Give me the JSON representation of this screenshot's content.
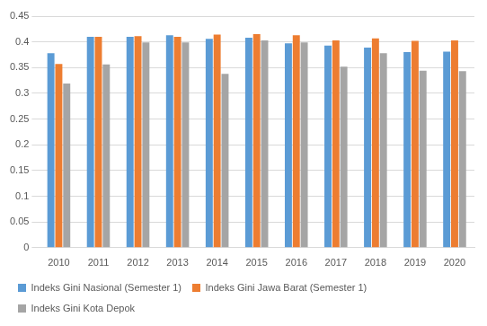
{
  "chart_data": {
    "type": "bar",
    "categories": [
      "2010",
      "2011",
      "2012",
      "2013",
      "2014",
      "2015",
      "2016",
      "2017",
      "2018",
      "2019",
      "2020"
    ],
    "series": [
      {
        "name": "Indeks Gini Nasional (Semester 1)",
        "color": "#5b9bd5",
        "values": [
          0.378,
          0.41,
          0.41,
          0.413,
          0.406,
          0.408,
          0.397,
          0.393,
          0.389,
          0.38,
          0.381
        ]
      },
      {
        "name": "Indeks Gini Jawa Barat (Semester 1)",
        "color": "#ed7d31",
        "values": [
          0.357,
          0.41,
          0.411,
          0.41,
          0.414,
          0.415,
          0.413,
          0.403,
          0.407,
          0.402,
          0.403
        ]
      },
      {
        "name": "Indeks Gini Kota Depok",
        "color": "#a5a5a5",
        "values": [
          0.319,
          0.356,
          0.399,
          0.399,
          0.338,
          0.403,
          0.399,
          0.352,
          0.378,
          0.344,
          0.343
        ]
      }
    ],
    "ylim": [
      0,
      0.45
    ],
    "yticks": [
      0,
      0.05,
      0.1,
      0.15,
      0.2,
      0.25,
      0.3,
      0.35,
      0.4,
      0.45
    ],
    "grid": true,
    "legend": "bottom"
  }
}
